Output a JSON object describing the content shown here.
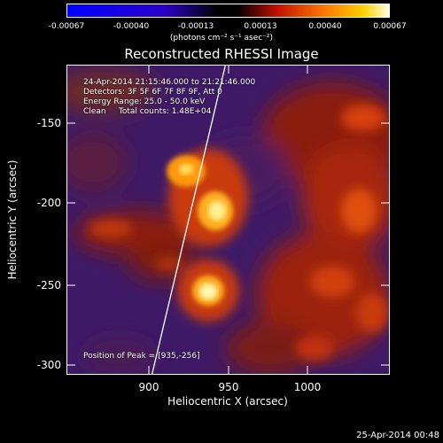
{
  "colorbar": {
    "ticks": [
      "-0.00067",
      "-0.00040",
      "-0.00013",
      "0.00013",
      "0.00040",
      "0.00067"
    ],
    "units": "(photons cm⁻² s⁻¹ asec⁻²)"
  },
  "title": "Reconstructed RHESSI Image",
  "info": {
    "time": "24-Apr-2014 21:15:46.000 to 21:21:46.000",
    "detectors": "Detectors: 3F 5F 6F 7F 8F 9F, Att 0",
    "energy": "Energy Range: 25.0 - 50.0 keV",
    "clean": "Clean     Total counts: 1.48E+04",
    "peak": "Position of Peak = [935,-256]"
  },
  "axes": {
    "xlabel": "Heliocentric X (arcsec)",
    "ylabel": "Heliocentric Y (arcsec)",
    "xticks": [
      "900",
      "950",
      "1000"
    ],
    "yticks": [
      "-150",
      "-200",
      "-250",
      "-300"
    ]
  },
  "timestamp": "25-Apr-2014 00:48"
}
